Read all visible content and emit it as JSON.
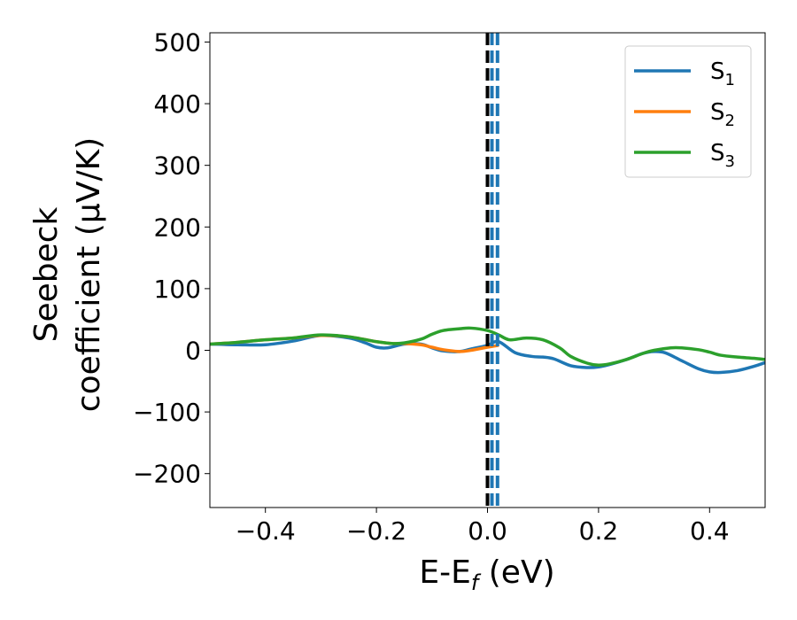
{
  "chart_data": {
    "type": "line",
    "xlabel": "E-E",
    "xlabel_sub": "f",
    "xlabel_unit": " (eV)",
    "ylabel_line1": "Seebeck",
    "ylabel_line2": "coefficient  (μV/K)",
    "xlim": [
      -0.5,
      0.5
    ],
    "ylim": [
      -255,
      515
    ],
    "x_ticks": [
      -0.4,
      -0.2,
      0.0,
      0.2,
      0.4
    ],
    "x_tick_labels": [
      "−0.4",
      "−0.2",
      "0.0",
      "0.2",
      "0.4"
    ],
    "y_ticks": [
      -200,
      -100,
      0,
      100,
      200,
      300,
      400,
      500
    ],
    "y_tick_labels": [
      "−200",
      "−100",
      "0",
      "100",
      "200",
      "300",
      "400",
      "500"
    ],
    "grid": false,
    "legend_position": "top-right",
    "vertical_lines": [
      {
        "x": 0.0,
        "color": "#000000",
        "style": "dashed"
      },
      {
        "x": 0.008,
        "color": "#1f77b4",
        "style": "dashed"
      },
      {
        "x": 0.018,
        "color": "#1f77b4",
        "style": "dashed"
      }
    ],
    "series": [
      {
        "name": "S",
        "sub": "1",
        "color": "#1f77b4",
        "x": [
          -0.5,
          -0.45,
          -0.4,
          -0.35,
          -0.3,
          -0.25,
          -0.22,
          -0.2,
          -0.18,
          -0.15,
          -0.12,
          -0.1,
          -0.08,
          -0.05,
          -0.03,
          0.0,
          0.02,
          0.05,
          0.08,
          0.1,
          0.12,
          0.15,
          0.18,
          0.2,
          0.22,
          0.25,
          0.28,
          0.3,
          0.32,
          0.35,
          0.38,
          0.4,
          0.42,
          0.45,
          0.48,
          0.5
        ],
        "y": [
          10,
          9,
          9,
          15,
          24,
          20,
          12,
          5,
          4,
          10,
          10,
          4,
          -1,
          -2,
          2,
          8,
          14,
          -4,
          -10,
          -11,
          -14,
          -25,
          -28,
          -27,
          -23,
          -15,
          -5,
          -2,
          -4,
          -17,
          -30,
          -35,
          -36,
          -33,
          -26,
          -20
        ]
      },
      {
        "name": "S",
        "sub": "2",
        "color": "#ff7f0e",
        "x": [
          -0.5,
          -0.45,
          -0.4,
          -0.35,
          -0.3,
          -0.25,
          -0.2,
          -0.17,
          -0.15,
          -0.12,
          -0.1,
          -0.08,
          -0.05,
          -0.03,
          0.0,
          0.02
        ],
        "y": [
          10,
          13,
          17,
          20,
          24,
          22,
          14,
          11,
          11,
          9,
          5,
          1,
          -2,
          0,
          5,
          8
        ]
      },
      {
        "name": "S",
        "sub": "3",
        "color": "#2ca02c",
        "x": [
          -0.5,
          -0.45,
          -0.4,
          -0.35,
          -0.3,
          -0.25,
          -0.2,
          -0.17,
          -0.15,
          -0.12,
          -0.1,
          -0.08,
          -0.05,
          -0.03,
          0.0,
          0.02,
          0.04,
          0.07,
          0.1,
          0.13,
          0.15,
          0.18,
          0.2,
          0.22,
          0.25,
          0.28,
          0.3,
          0.33,
          0.35,
          0.38,
          0.4,
          0.42,
          0.45,
          0.48,
          0.5
        ],
        "y": [
          10,
          13,
          17,
          20,
          25,
          22,
          14,
          11,
          12,
          18,
          26,
          32,
          35,
          36,
          32,
          25,
          17,
          20,
          17,
          4,
          -10,
          -21,
          -24,
          -22,
          -15,
          -5,
          0,
          4,
          4,
          1,
          -3,
          -8,
          -11,
          -13,
          -15
        ]
      }
    ]
  }
}
